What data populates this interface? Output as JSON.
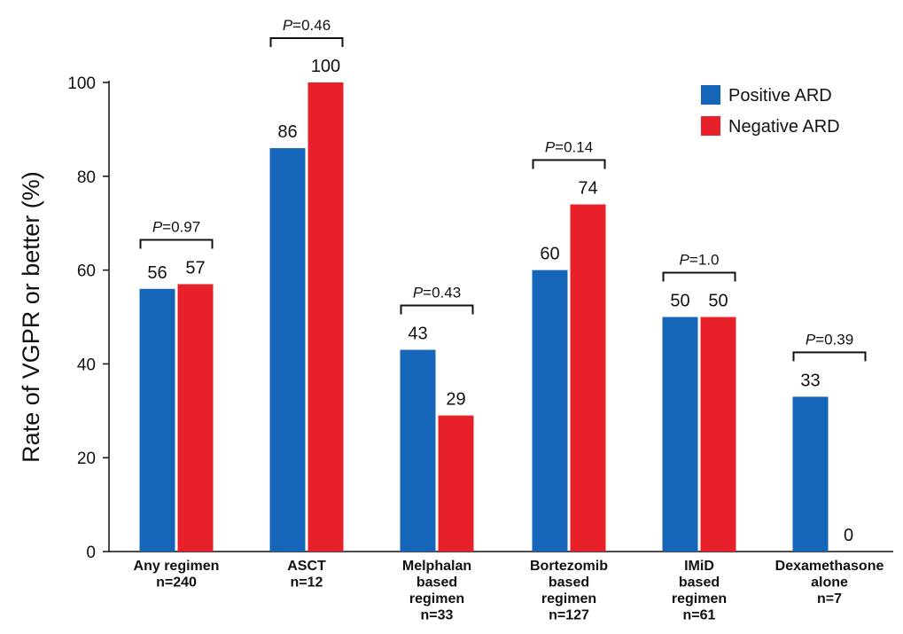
{
  "chart_data": {
    "type": "bar",
    "title": "",
    "ylabel": "Rate of VGPR or better (%)",
    "xlabel": "",
    "ylim": [
      0,
      100
    ],
    "yticks": [
      0,
      20,
      40,
      60,
      80,
      100
    ],
    "categories": [
      [
        "Any regimen",
        "n=240"
      ],
      [
        "ASCT",
        "n=12"
      ],
      [
        "Melphalan",
        "based",
        "regimen",
        "n=33"
      ],
      [
        "Bortezomib",
        "based",
        "regimen",
        "n=127"
      ],
      [
        "IMiD",
        "based",
        "regimen",
        "n=61"
      ],
      [
        "Dexamethasone",
        "alone",
        "n=7"
      ]
    ],
    "series": [
      {
        "name": "Positive ARD",
        "color": "#1565b8",
        "values": [
          56,
          86,
          43,
          60,
          50,
          33
        ]
      },
      {
        "name": "Negative ARD",
        "color": "#e8202a",
        "values": [
          57,
          100,
          29,
          74,
          50,
          0
        ]
      }
    ],
    "p_values": [
      "=0.97",
      "=0.46",
      "=0.43",
      "=0.14",
      "=1.0",
      "=0.39"
    ],
    "p_prefix": "P",
    "legend_position": "top-right",
    "grid": false
  }
}
